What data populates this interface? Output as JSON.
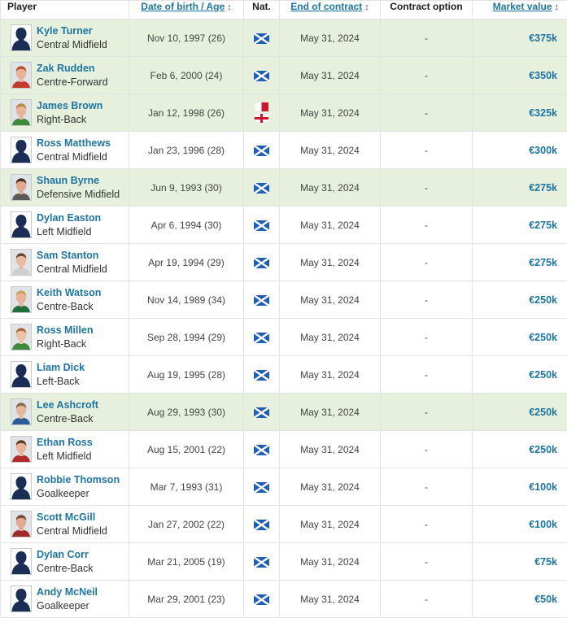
{
  "table": {
    "headers": {
      "player": "Player",
      "dob": "Date of birth / Age",
      "nat": "Nat.",
      "contract": "End of contract",
      "option": "Contract option",
      "value": "Market value"
    },
    "sort_glyph": "↕",
    "rows": [
      {
        "name": "Kyle Turner",
        "position": "Central Midfield",
        "dob": "Nov 10, 1997 (26)",
        "contract": "May 31, 2024",
        "option": "-",
        "value": "€375k",
        "highlight": true,
        "photo": "silhouette",
        "flags": [
          "scotland-flag"
        ]
      },
      {
        "name": "Zak Rudden",
        "position": "Centre-Forward",
        "dob": "Feb 6, 2000 (24)",
        "contract": "May 31, 2024",
        "option": "-",
        "value": "€350k",
        "highlight": true,
        "photo": "portrait",
        "skin": "#e8b39a",
        "hair": "#b4532a",
        "shirt": "#c23a30",
        "flags": [
          "scotland-flag"
        ]
      },
      {
        "name": "James Brown",
        "position": "Right-Back",
        "dob": "Jan 12, 1998 (26)",
        "contract": "May 31, 2024",
        "option": "-",
        "value": "€325k",
        "highlight": true,
        "photo": "portrait",
        "skin": "#e7b69b",
        "hair": "#b88a4a",
        "shirt": "#3a8b3a",
        "flags": [
          "malta-flag",
          "england-flag"
        ]
      },
      {
        "name": "Ross Matthews",
        "position": "Central Midfield",
        "dob": "Jan 23, 1996 (28)",
        "contract": "May 31, 2024",
        "option": "-",
        "value": "€300k",
        "highlight": false,
        "photo": "silhouette",
        "flags": [
          "scotland-flag"
        ]
      },
      {
        "name": "Shaun Byrne",
        "position": "Defensive Midfield",
        "dob": "Jun 9, 1993 (30)",
        "contract": "May 31, 2024",
        "option": "-",
        "value": "€275k",
        "highlight": true,
        "photo": "portrait",
        "skin": "#e0a98e",
        "hair": "#4a3222",
        "shirt": "#5a5a5a",
        "flags": [
          "scotland-flag"
        ]
      },
      {
        "name": "Dylan Easton",
        "position": "Left Midfield",
        "dob": "Apr 6, 1994 (30)",
        "contract": "May 31, 2024",
        "option": "-",
        "value": "€275k",
        "highlight": false,
        "photo": "silhouette",
        "flags": [
          "scotland-flag"
        ]
      },
      {
        "name": "Sam Stanton",
        "position": "Central Midfield",
        "dob": "Apr 19, 1994 (29)",
        "contract": "May 31, 2024",
        "option": "-",
        "value": "€275k",
        "highlight": false,
        "photo": "portrait",
        "skin": "#e9bca2",
        "hair": "#6b4b33",
        "shirt": "#cfcfcf",
        "flags": [
          "scotland-flag"
        ]
      },
      {
        "name": "Keith Watson",
        "position": "Centre-Back",
        "dob": "Nov 14, 1989 (34)",
        "contract": "May 31, 2024",
        "option": "-",
        "value": "€250k",
        "highlight": false,
        "photo": "portrait",
        "skin": "#e6b59a",
        "hair": "#c9a45a",
        "shirt": "#1f6f3a",
        "flags": [
          "scotland-flag"
        ]
      },
      {
        "name": "Ross Millen",
        "position": "Right-Back",
        "dob": "Sep 28, 1994 (29)",
        "contract": "May 31, 2024",
        "option": "-",
        "value": "€250k",
        "highlight": false,
        "photo": "portrait",
        "skin": "#edc1a8",
        "hair": "#b06a3a",
        "shirt": "#3a8b3a",
        "flags": [
          "scotland-flag"
        ]
      },
      {
        "name": "Liam Dick",
        "position": "Left-Back",
        "dob": "Aug 19, 1995 (28)",
        "contract": "May 31, 2024",
        "option": "-",
        "value": "€250k",
        "highlight": false,
        "photo": "silhouette",
        "flags": [
          "scotland-flag"
        ]
      },
      {
        "name": "Lee Ashcroft",
        "position": "Centre-Back",
        "dob": "Aug 29, 1993 (30)",
        "contract": "May 31, 2024",
        "option": "-",
        "value": "€250k",
        "highlight": true,
        "photo": "portrait",
        "skin": "#e4b79c",
        "hair": "#8a6a4a",
        "shirt": "#2a5c9a",
        "flags": [
          "scotland-flag"
        ]
      },
      {
        "name": "Ethan Ross",
        "position": "Left Midfield",
        "dob": "Aug 15, 2001 (22)",
        "contract": "May 31, 2024",
        "option": "-",
        "value": "€250k",
        "highlight": false,
        "photo": "portrait",
        "skin": "#eab49a",
        "hair": "#5a3a28",
        "shirt": "#b22a2a",
        "flags": [
          "scotland-flag"
        ]
      },
      {
        "name": "Robbie Thomson",
        "position": "Goalkeeper",
        "dob": "Mar 7, 1993 (31)",
        "contract": "May 31, 2024",
        "option": "-",
        "value": "€100k",
        "highlight": false,
        "photo": "silhouette",
        "flags": [
          "scotland-flag"
        ]
      },
      {
        "name": "Scott McGill",
        "position": "Central Midfield",
        "dob": "Jan 27, 2002 (22)",
        "contract": "May 31, 2024",
        "option": "-",
        "value": "€100k",
        "highlight": false,
        "photo": "portrait",
        "skin": "#e3a890",
        "hair": "#7a4a30",
        "shirt": "#a02a2a",
        "flags": [
          "scotland-flag"
        ]
      },
      {
        "name": "Dylan Corr",
        "position": "Centre-Back",
        "dob": "Mar 21, 2005 (19)",
        "contract": "May 31, 2024",
        "option": "-",
        "value": "€75k",
        "highlight": false,
        "photo": "silhouette",
        "flags": [
          "scotland-flag"
        ]
      },
      {
        "name": "Andy McNeil",
        "position": "Goalkeeper",
        "dob": "Mar 29, 2001 (23)",
        "contract": "May 31, 2024",
        "option": "-",
        "value": "€50k",
        "highlight": false,
        "photo": "silhouette",
        "flags": [
          "scotland-flag"
        ]
      }
    ]
  },
  "colors": {
    "link": "#1d75a3",
    "highlight_row": "#e6f0dc",
    "scotland_blue": "#1f5fb5",
    "border": "#e3e3e3",
    "silhouette": "#1a2e55"
  }
}
